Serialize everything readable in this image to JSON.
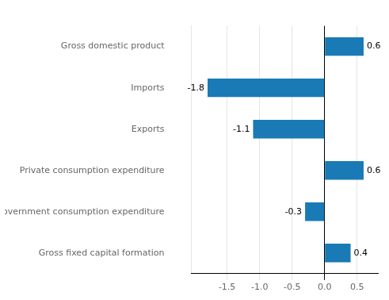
{
  "chart_data": {
    "type": "bar",
    "orientation": "horizontal",
    "categories": [
      "Gross fixed capital formation",
      "Government consumption expenditure",
      "Private consumption expenditure",
      "Exports",
      "Imports",
      "Gross domestic product"
    ],
    "values": [
      0.4,
      -0.3,
      0.6,
      -1.1,
      -1.8,
      0.6
    ],
    "color": "#1a7ab5",
    "xlim": [
      -2.05,
      0.82
    ],
    "xticks": [
      -1.5,
      {
        "value": -1.0,
        "label": "-1.0"
      },
      -0.5,
      {
        "value": 0.0,
        "label": "0.0"
      },
      0.5
    ],
    "grid": true,
    "data_labels": true
  }
}
